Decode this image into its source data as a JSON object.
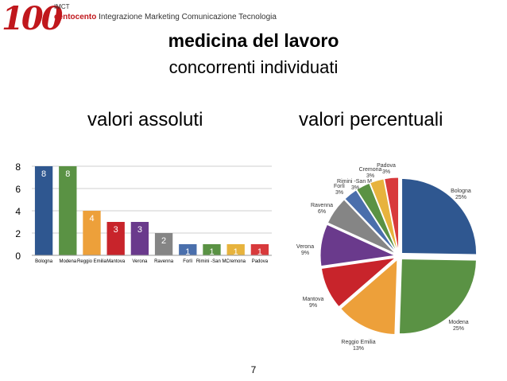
{
  "header": {
    "logo_number": "100",
    "logo_imct": "IMCT",
    "logo_brand": "centocento",
    "logo_tagline": "Integrazione Marketing Comunicazione Tecnologia"
  },
  "title": "medicina del lavoro",
  "subtitle": "concorrenti individuati",
  "left_heading": "valori assoluti",
  "right_heading": "valori percentuali",
  "page_number": "7",
  "colors": {
    "blue": "#2f5790",
    "green": "#5a9244",
    "orange": "#eda03a",
    "red": "#c8242b",
    "purple": "#6a3a8c",
    "gray": "#858585",
    "lightblue": "#4a6fac",
    "gold": "#e7b33d",
    "brightred": "#d83a3c"
  },
  "chart_data": [
    {
      "type": "bar",
      "categories": [
        "Bologna",
        "Modena",
        "Reggio Emilia",
        "Mantova",
        "Verona",
        "Ravenna",
        "Forlì",
        "Rimini -San M.",
        "Cremona",
        "Padova"
      ],
      "values": [
        8,
        8,
        4,
        3,
        3,
        2,
        1,
        1,
        1,
        1
      ],
      "value_labels": [
        "8",
        "8",
        "4",
        "3",
        "3",
        "2",
        "1",
        "1",
        "1",
        "1"
      ],
      "colors": [
        "#2f5790",
        "#5a9244",
        "#eda03a",
        "#c8242b",
        "#6a3a8c",
        "#858585",
        "#4a6fac",
        "#5a9244",
        "#e7b33d",
        "#d83a3c"
      ],
      "y_ticks": [
        "0",
        "2",
        "4",
        "6",
        "8"
      ],
      "ylim": [
        0,
        8
      ],
      "grid": true,
      "legend": "none"
    },
    {
      "type": "pie",
      "categories": [
        "Bologna",
        "Modena",
        "Reggio Emilia",
        "Mantova",
        "Verona",
        "Ravenna",
        "Forlì",
        "Rimini -San M.",
        "Cremona",
        "Padova"
      ],
      "values": [
        25,
        25,
        13,
        9,
        9,
        6,
        3,
        3,
        3,
        3
      ],
      "percent_labels": [
        "25%",
        "25%",
        "13%",
        "9%",
        "9%",
        "6%",
        "3%",
        "3%",
        "3%",
        "3%"
      ],
      "colors": [
        "#2f5790",
        "#5a9244",
        "#eda03a",
        "#c8242b",
        "#6a3a8c",
        "#858585",
        "#4a6fac",
        "#5a9244",
        "#e7b33d",
        "#d83a3c"
      ],
      "start_angle_deg": 0,
      "direction": "clockwise",
      "exploded": true
    }
  ]
}
